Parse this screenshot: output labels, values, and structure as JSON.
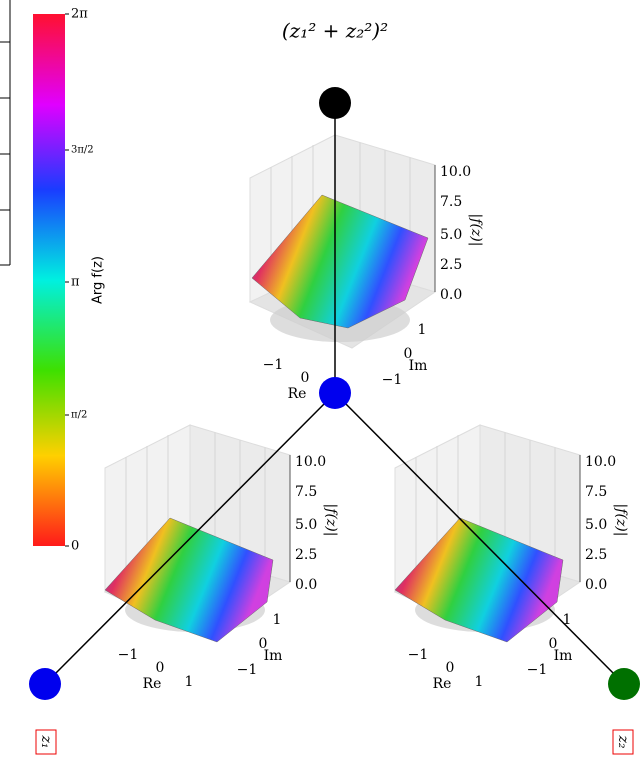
{
  "title": "(z₁² + z₂²)²",
  "colorbar": {
    "label": "Arg f(z)",
    "ticks": [
      "2π",
      "3π/2",
      "π",
      "π/2",
      "0"
    ]
  },
  "plots": [
    {
      "z_ticks": [
        "10.0",
        "7.5",
        "5.0",
        "2.5",
        "0.0"
      ],
      "z_label": "|f(z)|",
      "x_ticks": [
        "−1",
        "0"
      ],
      "x_label": "Re",
      "y_ticks": [
        "1",
        "0",
        "−1"
      ],
      "y_label": "Im"
    },
    {
      "z_ticks": [
        "10.0",
        "7.5",
        "5.0",
        "2.5",
        "0.0"
      ],
      "z_label": "|f(z)|",
      "x_ticks": [
        "−1",
        "0",
        "1"
      ],
      "x_label": "Re",
      "y_ticks": [
        "1",
        "0",
        "−1"
      ],
      "y_label": "Im"
    },
    {
      "z_ticks": [
        "10.0",
        "7.5",
        "5.0",
        "2.5",
        "0.0"
      ],
      "z_label": "|f(z)|",
      "x_ticks": [
        "−1",
        "0",
        "1"
      ],
      "x_label": "Re",
      "y_ticks": [
        "1",
        "0",
        "−1"
      ],
      "y_label": "Im"
    }
  ],
  "leaves": [
    "z₁",
    "z₂"
  ]
}
